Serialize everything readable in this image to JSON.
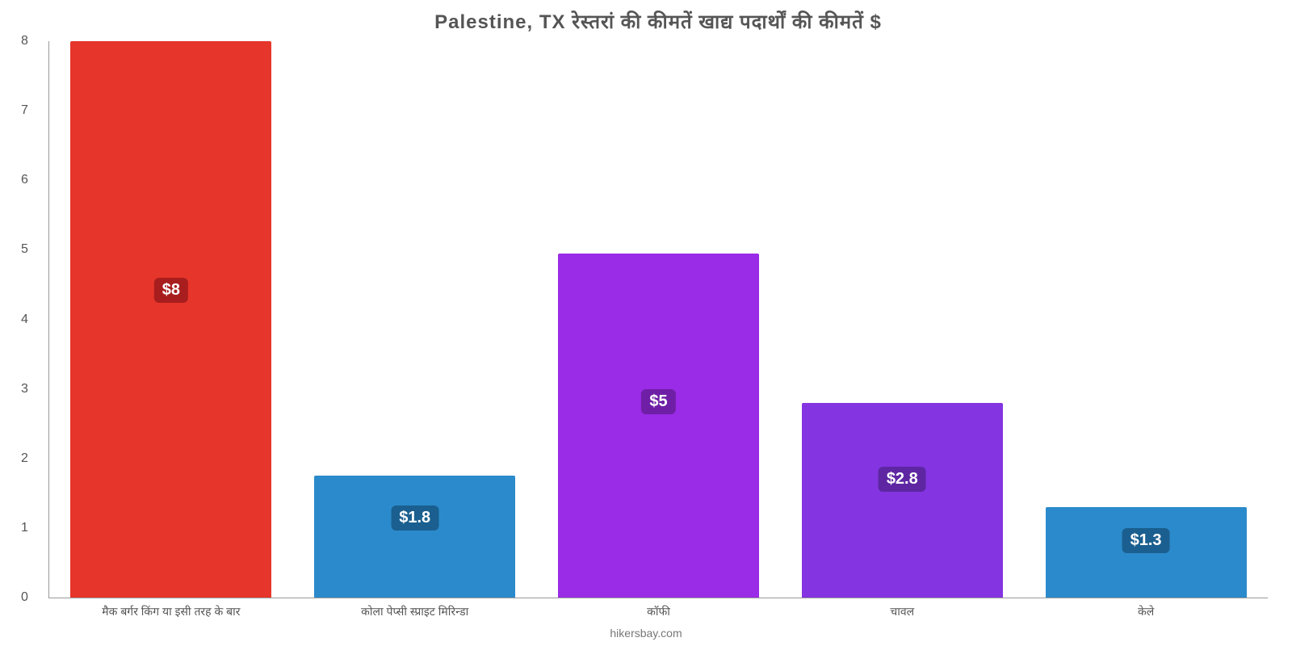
{
  "chart": {
    "type": "bar",
    "title": "Palestine, TX रेस्तरां   की   कीमतें   खाद्य   पदार्थों   की   कीमतें   $",
    "title_fontsize": 24,
    "title_color": "#555555",
    "background_color": "#ffffff",
    "axis_color": "#999999",
    "tick_color": "#555555",
    "label_fontsize": 14,
    "yaxis": {
      "ylim_min": 0,
      "ylim_max": 8,
      "tick_step": 1,
      "ticks": [
        "0",
        "1",
        "2",
        "3",
        "4",
        "5",
        "6",
        "7",
        "8"
      ]
    },
    "bar_width_pct": 16.5,
    "bars": [
      {
        "category": "मैक बर्गर किंग या इसी तरह के बार",
        "value": 8,
        "label": "$8",
        "color": "#e6352b",
        "label_bg": "#a81e1e",
        "center_pct": 10,
        "label_bottom_pct": 53
      },
      {
        "category": "कोला पेप्सी स्प्राइट मिरिन्डा",
        "value": 1.75,
        "label": "$1.8",
        "color": "#2b8acb",
        "label_bg": "#1a5f8f",
        "center_pct": 30,
        "label_bottom_pct": 12
      },
      {
        "category": "कॉफी",
        "value": 4.95,
        "label": "$5",
        "color": "#9a2be6",
        "label_bg": "#6e1fa6",
        "center_pct": 50,
        "label_bottom_pct": 33
      },
      {
        "category": "चावल",
        "value": 2.8,
        "label": "$2.8",
        "color": "#8434e0",
        "label_bg": "#5e26a3",
        "center_pct": 70,
        "label_bottom_pct": 19
      },
      {
        "category": "केले",
        "value": 1.3,
        "label": "$1.3",
        "color": "#2b8acb",
        "label_bg": "#1a5f8f",
        "center_pct": 90,
        "label_bottom_pct": 8
      }
    ],
    "credit": "hikersbay.com",
    "credit_color": "#777777"
  }
}
